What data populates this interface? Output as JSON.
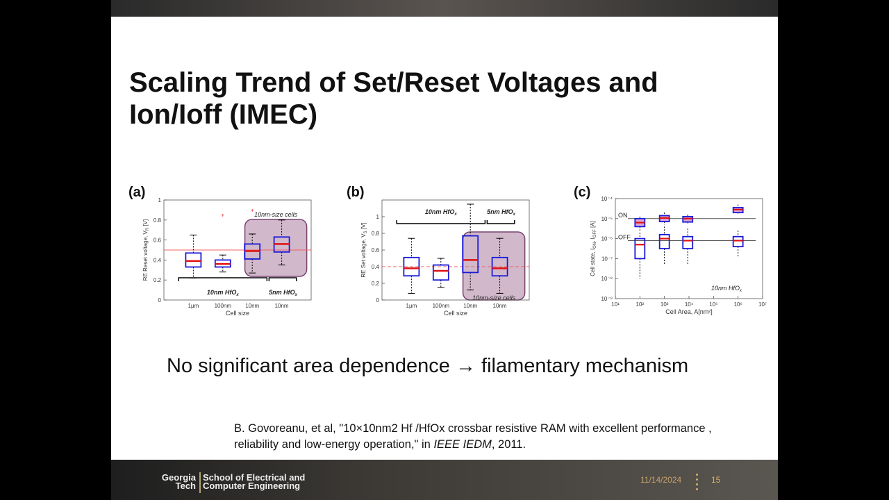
{
  "slide": {
    "title_line1": "Scaling Trend of Set/Reset Voltages and",
    "title_line2": "Ion/Ioff (IMEC)",
    "subtitle": "No significant area dependence → filamentary mechanism",
    "citation_main": "B. Govoreanu, et al, \"10×10nm2 Hf /HfOx crossbar resistive RAM with excellent performance , reliability and low-energy operation,\" in ",
    "citation_venue": "IEEE IEDM",
    "citation_year": ", 2011."
  },
  "footer": {
    "logo_left": "Georgia Tech",
    "logo_line1": "School of Electrical and",
    "logo_line2": "Computer Engineering",
    "date": "11/14/2024",
    "page": "15",
    "accent": "#b3a369"
  },
  "panels": [
    {
      "label": "(a)"
    },
    {
      "label": "(b)"
    },
    {
      "label": "(c)"
    }
  ],
  "chart_data": [
    {
      "type": "box",
      "ylabel": "RE Reset voltage, V",
      "ylabel_sub": "R",
      "ylabel_unit": "[V]",
      "xlabel": "Cell size",
      "categories": [
        "1μm",
        "100nm",
        "10nm",
        "10nm"
      ],
      "ylim": [
        0,
        1
      ],
      "yticks": [
        "0",
        "0.2",
        "0.4",
        "0.6",
        "0.8",
        "1"
      ],
      "ref_line": 0.5,
      "ref_line_color": "#f06060",
      "boxes": [
        {
          "min": 0.22,
          "q1": 0.33,
          "median": 0.39,
          "q3": 0.47,
          "max": 0.65,
          "outliers": []
        },
        {
          "min": 0.28,
          "q1": 0.33,
          "median": 0.36,
          "q3": 0.4,
          "max": 0.45,
          "outliers": [
            0.85
          ]
        },
        {
          "min": 0.27,
          "q1": 0.41,
          "median": 0.49,
          "q3": 0.56,
          "max": 0.66,
          "outliers": [
            0.9
          ]
        },
        {
          "min": 0.35,
          "q1": 0.48,
          "median": 0.56,
          "q3": 0.63,
          "max": 0.8,
          "outliers": []
        }
      ],
      "annotations": {
        "highlight": "10nm-size cells",
        "group1": "10nm HfO",
        "group2": "5nm HfO",
        "sub": "x"
      }
    },
    {
      "type": "box",
      "ylabel": "RE Set voltage, V",
      "ylabel_sub": "S",
      "ylabel_unit": "[V]",
      "xlabel": "Cell size",
      "categories": [
        "1μm",
        "100nm",
        "10nm",
        "10nm"
      ],
      "ylim": [
        0,
        1.2
      ],
      "yticks": [
        "0",
        "0.2",
        "0.4",
        "0.6",
        "0.8",
        "1"
      ],
      "ref_line": 0.4,
      "ref_line_color": "#f06060",
      "boxes": [
        {
          "min": 0.08,
          "q1": 0.29,
          "median": 0.38,
          "q3": 0.51,
          "max": 0.74,
          "outliers": []
        },
        {
          "min": 0.15,
          "q1": 0.24,
          "median": 0.35,
          "q3": 0.42,
          "max": 0.5,
          "outliers": []
        },
        {
          "min": 0.12,
          "q1": 0.33,
          "median": 0.48,
          "q3": 0.77,
          "max": 1.15,
          "outliers": []
        },
        {
          "min": 0.08,
          "q1": 0.29,
          "median": 0.38,
          "q3": 0.51,
          "max": 0.74,
          "outliers": []
        }
      ],
      "annotations": {
        "highlight": "10nm-size cells",
        "group1": "10nm HfO",
        "group2": "5nm HfO",
        "sub": "x"
      }
    },
    {
      "type": "box",
      "ylabel": "Cell state, I",
      "ylabel_unit": "[A]",
      "xlabel": "Cell Area, A[nm²]",
      "xscale": "log",
      "yscale": "log",
      "xlim": [
        1,
        7
      ],
      "ylim": [
        -9,
        -4
      ],
      "xticks": [
        "10¹",
        "10²",
        "10³",
        "10⁴",
        "10⁵",
        "10⁶",
        "10⁷"
      ],
      "yticks": [
        "10⁻⁴",
        "10⁻⁵",
        "10⁻⁶",
        "10⁻⁷",
        "10⁻⁸",
        "10⁻⁹"
      ],
      "on_level": -5.0,
      "off_level": -6.1,
      "line_labels": [
        "ON",
        "OFF"
      ],
      "on_boxes": [
        {
          "x": 2,
          "min": -5.6,
          "q1": -5.4,
          "median": -5.2,
          "q3": -5.0,
          "max": -4.9
        },
        {
          "x": 3,
          "min": -5.3,
          "q1": -5.15,
          "median": -4.97,
          "q3": -4.85,
          "max": -4.7
        },
        {
          "x": 3.95,
          "min": -5.3,
          "q1": -5.17,
          "median": -5.0,
          "q3": -4.9,
          "max": -4.8
        },
        {
          "x": 6,
          "min": -4.75,
          "q1": -4.7,
          "median": -4.55,
          "q3": -4.45,
          "max": -4.3
        }
      ],
      "off_boxes": [
        {
          "x": 2,
          "min": -8.0,
          "q1": -7.0,
          "median": -6.3,
          "q3": -6.0,
          "max": -5.7
        },
        {
          "x": 3,
          "min": -7.3,
          "q1": -6.5,
          "median": -6.0,
          "q3": -5.8,
          "max": -5.4
        },
        {
          "x": 3.95,
          "min": -7.3,
          "q1": -6.5,
          "median": -6.1,
          "q3": -5.9,
          "max": -5.5
        },
        {
          "x": 6,
          "min": -6.9,
          "q1": -6.4,
          "median": -6.1,
          "q3": -5.9,
          "max": -5.6
        }
      ],
      "annotation": "10nm HfO"
    }
  ]
}
